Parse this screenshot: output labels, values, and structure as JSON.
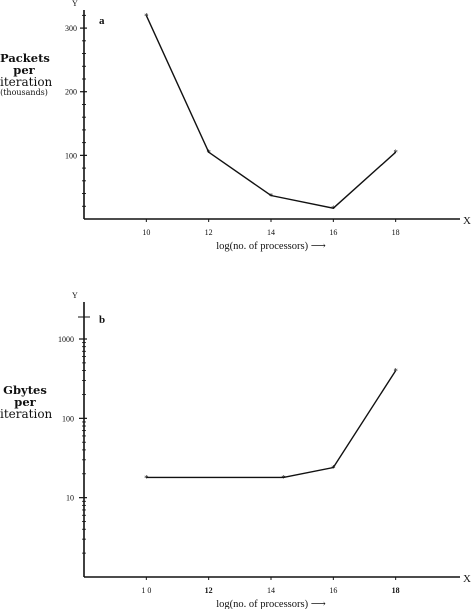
{
  "chart_data": [
    {
      "type": "line",
      "panel_label": "a",
      "y_axis_letter": "Y",
      "x_axis_letter": "X",
      "ylabel_lines": [
        "Packets",
        "per",
        "iteration",
        "(thousands)"
      ],
      "xlabel": "log(no. of processors)",
      "xlabel_arrow": "⟶",
      "x_ticks": [
        10,
        12,
        14,
        16,
        18
      ],
      "y_ticks": [
        100,
        200,
        300
      ],
      "xlim": [
        8,
        20
      ],
      "ylim": [
        0,
        330
      ],
      "scale": "linear",
      "x": [
        10,
        12,
        14,
        16,
        18
      ],
      "y": [
        320,
        105,
        37,
        17,
        105
      ]
    },
    {
      "type": "line",
      "panel_label": "b",
      "y_axis_letter": "Y",
      "x_axis_letter": "X",
      "ylabel_lines": [
        "Gbytes",
        "per",
        "iteration"
      ],
      "xlabel": "log(no. of processors)",
      "xlabel_arrow": "⟶",
      "x_ticks": [
        10,
        12,
        14,
        16,
        18
      ],
      "x_tick_labels": [
        "1 0",
        "12",
        "14",
        "16",
        "18"
      ],
      "y_ticks": [
        10,
        100,
        1000
      ],
      "y_tick_labels": [
        "10",
        "100",
        "1000"
      ],
      "xlim": [
        8,
        20
      ],
      "ylim": [
        1,
        1000
      ],
      "scale": "log",
      "x": [
        10,
        14.4,
        16,
        18
      ],
      "y": [
        18,
        18,
        24,
        400
      ]
    }
  ]
}
